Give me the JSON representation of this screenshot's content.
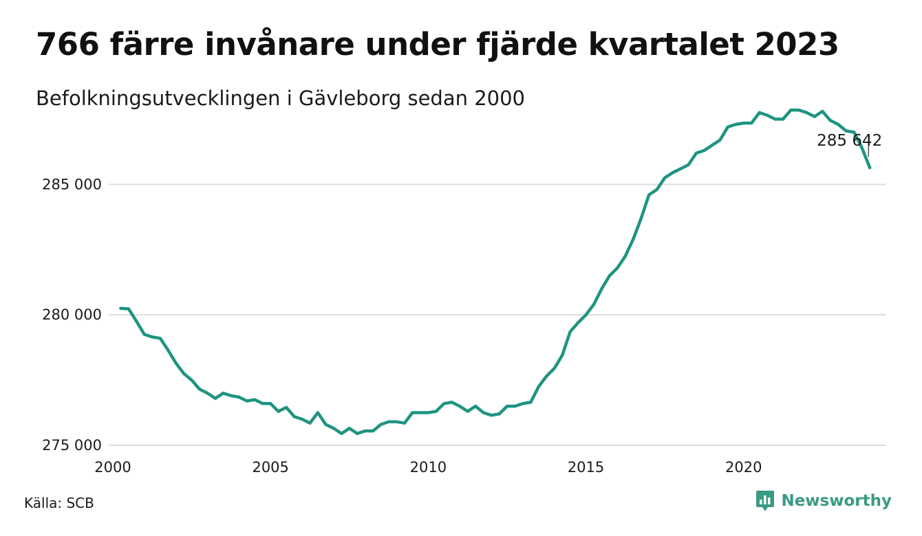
{
  "title": "766 färre invånare under fjärde kvartalet 2023",
  "subtitle": "Befolkningsutvecklingen i Gävleborg sedan 2000",
  "source": "Källa: SCB",
  "brand": {
    "name": "Newsworthy",
    "icon": "newsworthy-logo-icon",
    "color": "#3a9a84"
  },
  "colors": {
    "line": "#1f9480",
    "grid": "#dddddd",
    "text": "#1a1a1a"
  },
  "chart_data": {
    "type": "line",
    "title": "766 färre invånare under fjärde kvartalet 2023",
    "subtitle": "Befolkningsutvecklingen i Gävleborg sedan 2000",
    "xlabel": "",
    "ylabel": "",
    "xlim": [
      2000,
      2024.5
    ],
    "ylim": [
      275000,
      286800
    ],
    "xticks": [
      2000,
      2005,
      2010,
      2015,
      2020
    ],
    "xtick_labels": [
      "2000",
      "2005",
      "2010",
      "2015",
      "2020"
    ],
    "yticks": [
      275000,
      280000,
      285000
    ],
    "ytick_labels": [
      "275 000",
      "280 000",
      "285 000"
    ],
    "grid": "horizontal",
    "legend": "none",
    "annotation": {
      "label": "285 642",
      "x": 2023.96,
      "y": 285642
    },
    "series": [
      {
        "x": [
          2000.25,
          2000.5,
          2000.75,
          2001.0,
          2001.25,
          2001.5,
          2001.75,
          2002.0,
          2002.25,
          2002.5,
          2002.75,
          2003.0,
          2003.25,
          2003.5,
          2003.75,
          2004.0,
          2004.25,
          2004.5,
          2004.75,
          2005.0,
          2005.25,
          2005.5,
          2005.75,
          2006.0,
          2006.25,
          2006.5,
          2006.75,
          2007.0,
          2007.25,
          2007.5,
          2007.75,
          2008.0,
          2008.25,
          2008.5,
          2008.75,
          2009.0,
          2009.25,
          2009.5,
          2009.75,
          2010.0,
          2010.25,
          2010.5,
          2010.75,
          2011.0,
          2011.25,
          2011.5,
          2011.75,
          2012.0,
          2012.25,
          2012.5,
          2012.75,
          2013.0,
          2013.25,
          2013.5,
          2013.75,
          2014.0,
          2014.25,
          2014.5,
          2014.75,
          2015.0,
          2015.25,
          2015.5,
          2015.75,
          2016.0,
          2016.25,
          2016.5,
          2016.75,
          2017.0,
          2017.25,
          2017.5,
          2017.75,
          2018.0,
          2018.25,
          2018.5,
          2018.75,
          2019.0,
          2019.25,
          2019.5,
          2019.75,
          2020.0,
          2020.25,
          2020.5,
          2020.75,
          2021.0,
          2021.25,
          2021.5,
          2021.75,
          2022.0,
          2022.25,
          2022.5,
          2022.75,
          2023.0,
          2023.25,
          2023.5,
          2023.75,
          2024.0
        ],
        "values": [
          280250,
          280230,
          279750,
          279250,
          279150,
          279100,
          278650,
          278150,
          277750,
          277500,
          277150,
          277000,
          276800,
          277000,
          276900,
          276850,
          276700,
          276750,
          276600,
          276600,
          276300,
          276450,
          276100,
          276000,
          275850,
          276250,
          275800,
          275650,
          275450,
          275650,
          275450,
          275550,
          275550,
          275800,
          275900,
          275900,
          275850,
          276250,
          276250,
          276250,
          276300,
          276600,
          276650,
          276500,
          276300,
          276500,
          276250,
          276150,
          276200,
          276500,
          276500,
          276600,
          276650,
          277250,
          277650,
          277950,
          278450,
          279350,
          279700,
          280000,
          280400,
          281000,
          281500,
          281800,
          282250,
          282900,
          283700,
          284600,
          284800,
          285250,
          285450,
          285600,
          285750,
          286200,
          286300,
          286500,
          286700,
          287200,
          287300,
          287350,
          287350,
          287750,
          287650,
          287500,
          287500,
          287850,
          287850,
          287750,
          287600,
          287800,
          287450,
          287300,
          287050,
          287000,
          286408,
          285642
        ]
      }
    ]
  }
}
